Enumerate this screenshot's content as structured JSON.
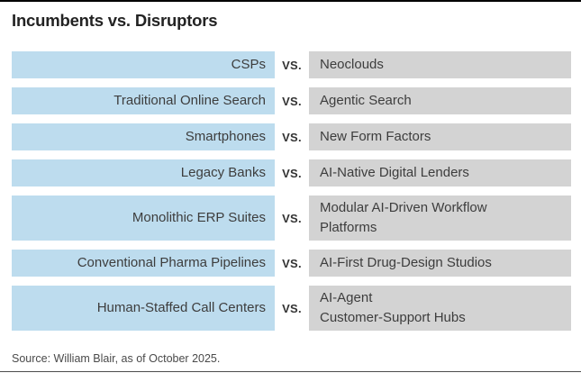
{
  "title": "Incumbents vs. Disruptors",
  "vs_label": "VS.",
  "rows": [
    {
      "incumbent": "CSPs",
      "disruptor": "Neoclouds"
    },
    {
      "incumbent": "Traditional Online Search",
      "disruptor": "Agentic Search"
    },
    {
      "incumbent": "Smartphones",
      "disruptor": "New Form Factors"
    },
    {
      "incumbent": "Legacy Banks",
      "disruptor": "AI-Native Digital Lenders"
    },
    {
      "incumbent": "Monolithic ERP Suites",
      "disruptor": "Modular AI-Driven Workflow\nPlatforms"
    },
    {
      "incumbent": "Conventional Pharma Pipelines",
      "disruptor": "AI-First Drug-Design Studios"
    },
    {
      "incumbent": "Human-Staffed Call Centers",
      "disruptor": "AI-Agent\nCustomer-Support Hubs"
    }
  ],
  "source": "Source: William Blair, as of October 2025.",
  "colors": {
    "incumbent_bg": "#BDDCEE",
    "disruptor_bg": "#D3D3D3",
    "title_color": "#232323",
    "label_color": "#3D3D3D",
    "vs_color": "#333333",
    "source_color": "#4A4A4A",
    "top_rule": "#000000",
    "bottom_rule": "#4D4D4D"
  }
}
